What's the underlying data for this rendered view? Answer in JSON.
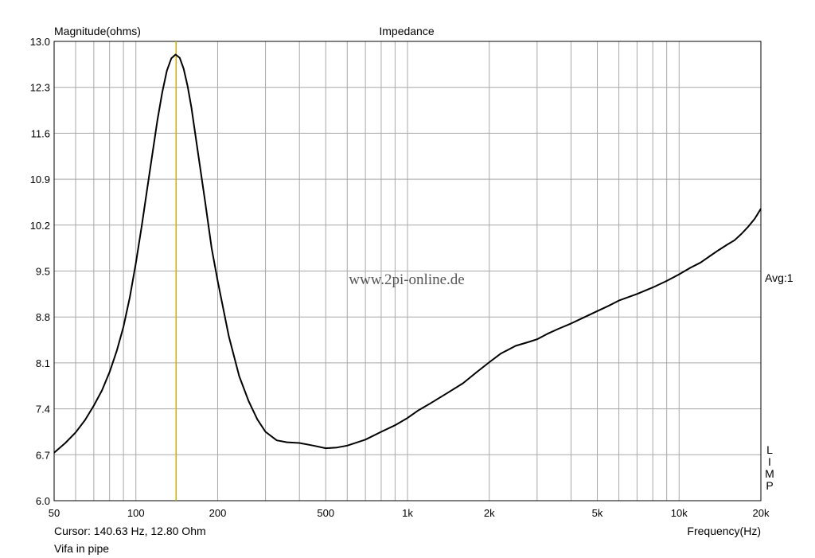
{
  "chart_data": {
    "type": "line",
    "title": "Impedance",
    "ylabel": "Magnitude(ohms)",
    "xlabel": "Frequency(Hz)",
    "x_scale": "log",
    "xlim": [
      50,
      20000
    ],
    "ylim": [
      6.0,
      13.0
    ],
    "y_ticks": [
      "13.0",
      "12.3",
      "11.6",
      "10.9",
      "10.2",
      "9.5",
      "8.8",
      "8.1",
      "7.4",
      "6.7",
      "6.0"
    ],
    "x_ticks": [
      {
        "value": 50,
        "label": "50"
      },
      {
        "value": 100,
        "label": "100"
      },
      {
        "value": 200,
        "label": "200"
      },
      {
        "value": 500,
        "label": "500"
      },
      {
        "value": 1000,
        "label": "1k"
      },
      {
        "value": 2000,
        "label": "2k"
      },
      {
        "value": 5000,
        "label": "5k"
      },
      {
        "value": 10000,
        "label": "10k"
      },
      {
        "value": 20000,
        "label": "20k"
      }
    ],
    "grid": true,
    "cursor": {
      "x": 140.63,
      "y": 12.8,
      "color": "#c8b400"
    },
    "series": [
      {
        "color": "#000000",
        "points": [
          [
            50,
            6.73
          ],
          [
            55,
            6.88
          ],
          [
            60,
            7.04
          ],
          [
            65,
            7.23
          ],
          [
            70,
            7.45
          ],
          [
            75,
            7.68
          ],
          [
            80,
            7.96
          ],
          [
            85,
            8.28
          ],
          [
            90,
            8.65
          ],
          [
            95,
            9.1
          ],
          [
            100,
            9.62
          ],
          [
            105,
            10.18
          ],
          [
            110,
            10.75
          ],
          [
            115,
            11.28
          ],
          [
            120,
            11.8
          ],
          [
            125,
            12.22
          ],
          [
            130,
            12.55
          ],
          [
            135,
            12.74
          ],
          [
            140,
            12.8
          ],
          [
            145,
            12.75
          ],
          [
            150,
            12.58
          ],
          [
            155,
            12.32
          ],
          [
            160,
            12.0
          ],
          [
            170,
            11.25
          ],
          [
            180,
            10.55
          ],
          [
            190,
            9.85
          ],
          [
            200,
            9.35
          ],
          [
            220,
            8.5
          ],
          [
            240,
            7.9
          ],
          [
            260,
            7.52
          ],
          [
            280,
            7.24
          ],
          [
            300,
            7.05
          ],
          [
            330,
            6.92
          ],
          [
            360,
            6.89
          ],
          [
            400,
            6.88
          ],
          [
            450,
            6.84
          ],
          [
            500,
            6.8
          ],
          [
            550,
            6.81
          ],
          [
            600,
            6.84
          ],
          [
            700,
            6.93
          ],
          [
            800,
            7.05
          ],
          [
            900,
            7.15
          ],
          [
            1000,
            7.26
          ],
          [
            1100,
            7.38
          ],
          [
            1200,
            7.47
          ],
          [
            1400,
            7.64
          ],
          [
            1600,
            7.79
          ],
          [
            1800,
            7.96
          ],
          [
            2000,
            8.11
          ],
          [
            2200,
            8.24
          ],
          [
            2500,
            8.36
          ],
          [
            2800,
            8.42
          ],
          [
            3000,
            8.46
          ],
          [
            3300,
            8.55
          ],
          [
            3600,
            8.62
          ],
          [
            4000,
            8.7
          ],
          [
            4500,
            8.8
          ],
          [
            5000,
            8.89
          ],
          [
            5500,
            8.97
          ],
          [
            6000,
            9.05
          ],
          [
            7000,
            9.15
          ],
          [
            8000,
            9.25
          ],
          [
            9000,
            9.35
          ],
          [
            10000,
            9.45
          ],
          [
            11000,
            9.55
          ],
          [
            12000,
            9.63
          ],
          [
            13000,
            9.73
          ],
          [
            14000,
            9.82
          ],
          [
            15000,
            9.9
          ],
          [
            16000,
            9.97
          ],
          [
            17000,
            10.07
          ],
          [
            18000,
            10.18
          ],
          [
            19000,
            10.3
          ],
          [
            20000,
            10.45
          ]
        ]
      }
    ]
  },
  "watermark": "www.2pi-online.de",
  "right_labels": {
    "avg": "Avg:1",
    "letters": [
      "L",
      "I",
      "M",
      "P"
    ]
  },
  "footer": {
    "cursor_readout": "Cursor: 140.63 Hz, 12.80 Ohm",
    "caption": "Vifa in pipe"
  }
}
